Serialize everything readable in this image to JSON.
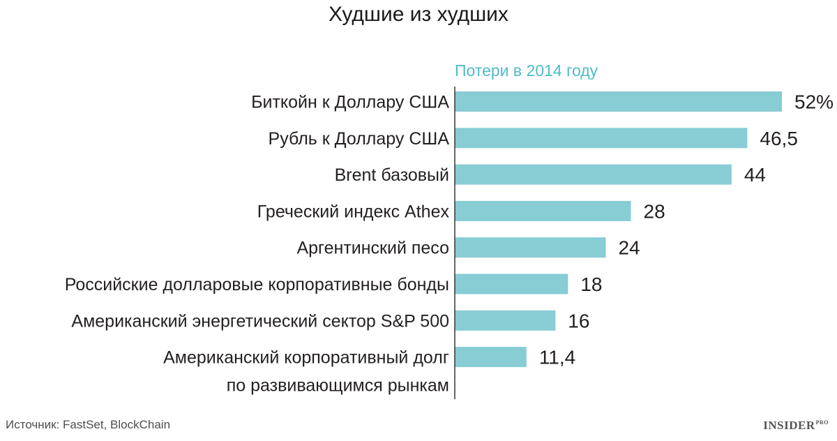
{
  "title": "Худшие из худших",
  "series_label": "Потери в 2014 году",
  "source": "Источник: FastSet, BlockChain",
  "logo": {
    "main": "INSIDER",
    "sup": "PRO"
  },
  "colors": {
    "bar": "#88ccd4",
    "series_label": "#4fbcc9",
    "axis": "#333333",
    "text": "#231f20"
  },
  "chart_data": {
    "type": "bar",
    "orientation": "horizontal",
    "categories": [
      [
        "Биткойн к Доллару США"
      ],
      [
        "Рубль к Доллару США"
      ],
      [
        "Brent базовый"
      ],
      [
        "Греческий индекс Athex"
      ],
      [
        "Аргентинский песо"
      ],
      [
        "Российские долларовые корпоративные бонды"
      ],
      [
        "Американский энергетический сектор S&P 500"
      ],
      [
        "Американский корпоративный долг",
        "по развивающимся рынкам"
      ]
    ],
    "values": [
      52,
      46.5,
      44,
      28,
      24,
      18,
      16,
      11.4
    ],
    "value_labels": [
      "52%",
      "46,5",
      "44",
      "28",
      "24",
      "18",
      "16",
      "11,4"
    ],
    "series": [
      {
        "name": "Потери в 2014 году",
        "values": [
          52,
          46.5,
          44,
          28,
          24,
          18,
          16,
          11.4
        ]
      }
    ],
    "xlim": [
      0,
      52
    ],
    "grid": false,
    "legend": "top"
  }
}
